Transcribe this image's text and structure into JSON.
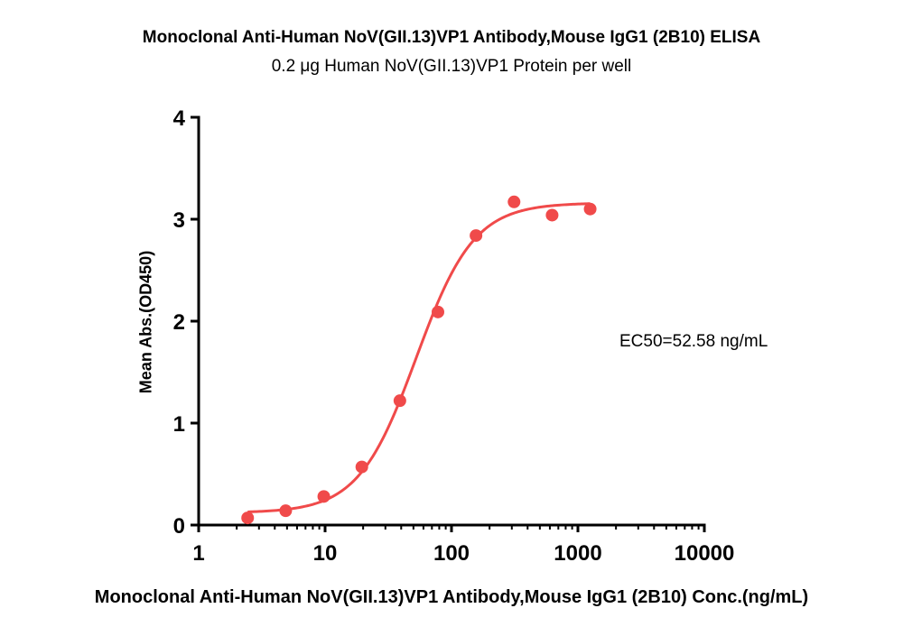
{
  "chart_data": {
    "type": "scatter",
    "title": "Monoclonal Anti-Human NoV(GII.13)VP1 Antibody,Mouse IgG1 (2B10) ELISA",
    "subtitle": "0.2 μg Human NoV(GII.13)VP1 Protein per well",
    "xlabel": "Monoclonal Anti-Human NoV(GII.13)VP1 Antibody,Mouse IgG1 (2B10) Conc.(ng/mL)",
    "ylabel": "Mean Abs.(OD450)",
    "x_scale": "log",
    "xlim": [
      1,
      10000
    ],
    "ylim": [
      0,
      4
    ],
    "x_ticks": [
      "1",
      "10",
      "100",
      "1000",
      "10000"
    ],
    "y_ticks": [
      "0",
      "1",
      "2",
      "3",
      "4"
    ],
    "annotation": "EC50=52.58 ng/mL",
    "grid": false,
    "color": "#f04a4a",
    "series": [
      {
        "x": [
          2.44,
          4.88,
          9.77,
          19.53,
          39.06,
          78.13,
          156.25,
          312.5,
          625,
          1250
        ],
        "y": [
          0.07,
          0.14,
          0.28,
          0.57,
          1.22,
          2.09,
          2.84,
          3.17,
          3.04,
          3.1
        ]
      }
    ],
    "fit_curve": {
      "model": "4PL",
      "bottom": 0.12,
      "top": 3.16,
      "ec50": 52.58,
      "hill": 1.9
    }
  }
}
